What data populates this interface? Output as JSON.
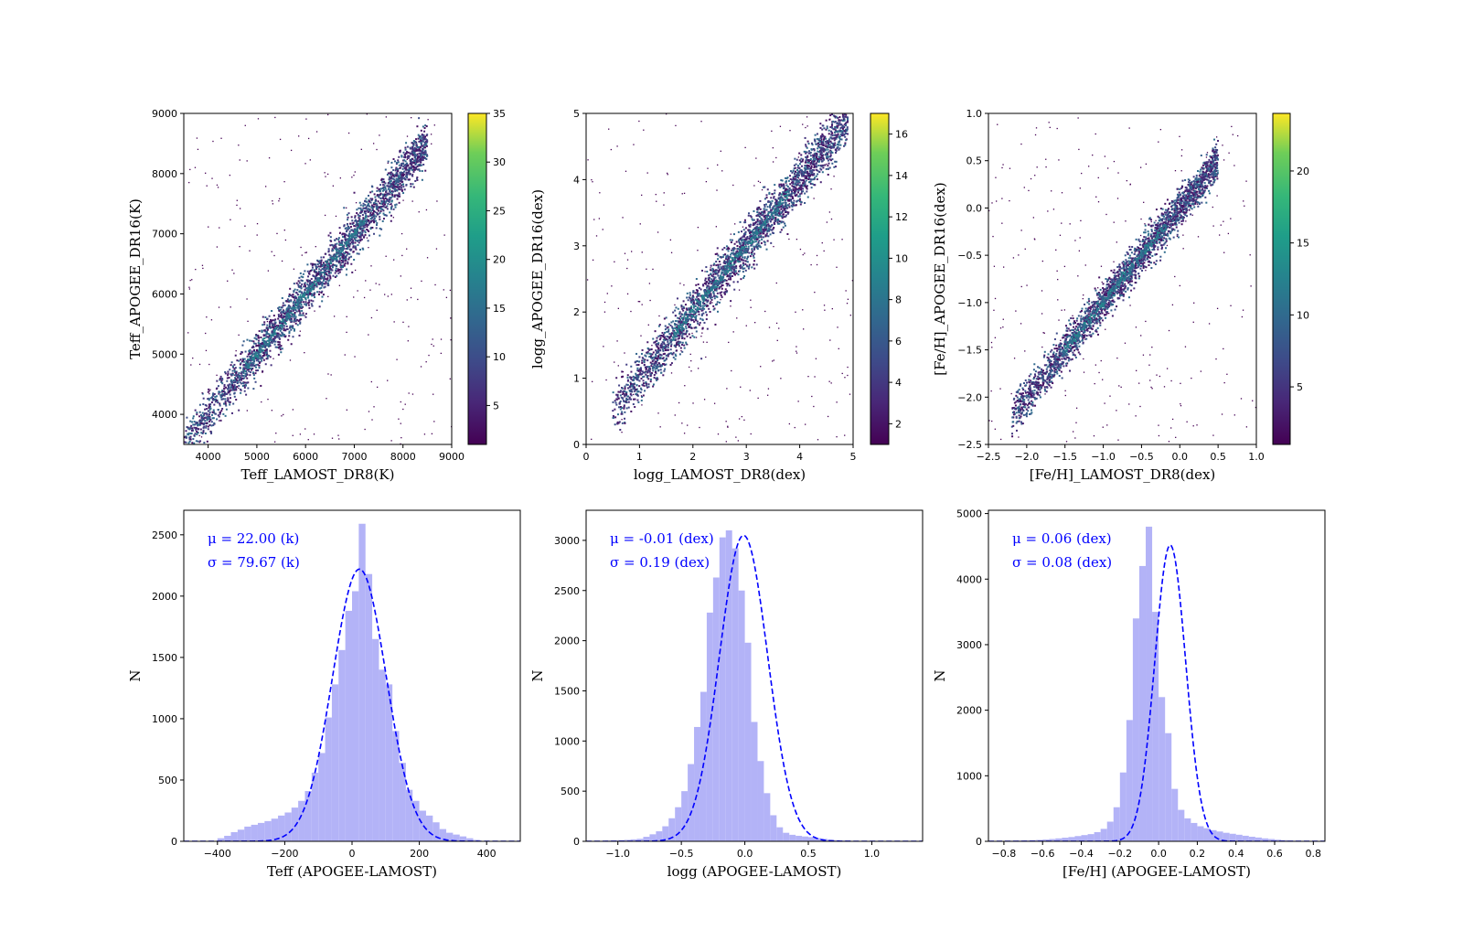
{
  "chart_data": [
    {
      "type": "scatter",
      "subtype": "density-scatter",
      "xlabel": "Teff_LAMOST_DR8(K)",
      "ylabel": "Teff_APOGEE_DR16(K)",
      "xlim": [
        3500,
        9000
      ],
      "ylim": [
        3500,
        9000
      ],
      "xticks": [
        4000,
        5000,
        6000,
        7000,
        8000,
        9000
      ],
      "yticks": [
        4000,
        5000,
        6000,
        7000,
        8000,
        9000
      ],
      "colorbar": {
        "range": [
          1,
          35
        ],
        "ticks": [
          5,
          10,
          15,
          20,
          25,
          30,
          35
        ],
        "colormap": "viridis"
      },
      "trend": {
        "x0": 3500,
        "x1": 8500,
        "slope": 1.0,
        "intercept": 0,
        "scatter": 180
      }
    },
    {
      "type": "scatter",
      "subtype": "density-scatter",
      "xlabel": "logg_LAMOST_DR8(dex)",
      "ylabel": "logg_APOGEE_DR16(dex)",
      "xlim": [
        0,
        5
      ],
      "ylim": [
        0,
        5
      ],
      "xticks": [
        0,
        1,
        2,
        3,
        4,
        5
      ],
      "yticks": [
        0,
        1,
        2,
        3,
        4,
        5
      ],
      "colorbar": {
        "range": [
          1,
          17
        ],
        "ticks": [
          2,
          4,
          6,
          8,
          10,
          12,
          14,
          16
        ],
        "colormap": "viridis"
      },
      "trend": {
        "x0": 0.5,
        "x1": 4.9,
        "slope": 1.0,
        "intercept": 0,
        "scatter": 0.18
      }
    },
    {
      "type": "scatter",
      "subtype": "density-scatter",
      "xlabel": "[Fe/H]_LAMOST_DR8(dex)",
      "ylabel": "[Fe/H]_APOGEE_DR16(dex)",
      "xlim": [
        -2.5,
        1.0
      ],
      "ylim": [
        -2.5,
        1.0
      ],
      "xticks": [
        -2.5,
        -2.0,
        -1.5,
        -1.0,
        -0.5,
        0.0,
        0.5,
        1.0
      ],
      "yticks": [
        -2.5,
        -2.0,
        -1.5,
        -1.0,
        -0.5,
        0.0,
        0.5,
        1.0
      ],
      "colorbar": {
        "range": [
          1,
          24
        ],
        "ticks": [
          5,
          10,
          15,
          20
        ],
        "colormap": "viridis"
      },
      "trend": {
        "x0": -2.2,
        "x1": 0.5,
        "slope": 1.0,
        "intercept": 0,
        "scatter": 0.1
      }
    },
    {
      "type": "bar",
      "subtype": "histogram",
      "xlabel": "Teff (APOGEE-LAMOST)",
      "ylabel": "N",
      "xlim": [
        -500,
        500
      ],
      "ylim": [
        0,
        2700
      ],
      "xticks": [
        -400,
        -200,
        0,
        200,
        400
      ],
      "yticks": [
        0,
        500,
        1000,
        1500,
        2000,
        2500
      ],
      "bin_edges": [
        -400,
        380
      ],
      "values": [
        25,
        45,
        75,
        95,
        120,
        135,
        150,
        165,
        185,
        210,
        235,
        275,
        330,
        410,
        560,
        720,
        1010,
        1280,
        1560,
        1880,
        2040,
        2590,
        2180,
        1650,
        1400,
        1280,
        900,
        640,
        420,
        330,
        250,
        210,
        155,
        100,
        70,
        55,
        40,
        25,
        12
      ],
      "fit": {
        "mu": 22.0,
        "sigma": 79.67,
        "amp": 2220
      },
      "annotations": [
        "μ = 22.00 (k)",
        "σ = 79.67 (k)"
      ]
    },
    {
      "type": "bar",
      "subtype": "histogram",
      "xlabel": "logg (APOGEE-LAMOST)",
      "ylabel": "N",
      "xlim": [
        -1.25,
        1.4
      ],
      "ylim": [
        0,
        3300
      ],
      "xticks": [
        -1.0,
        -0.5,
        0.0,
        0.5,
        1.0
      ],
      "yticks": [
        0,
        500,
        1000,
        1500,
        2000,
        2500,
        3000
      ],
      "bin_edges": [
        -1.2,
        1.2
      ],
      "values": [
        5,
        5,
        8,
        10,
        12,
        15,
        20,
        25,
        45,
        70,
        100,
        150,
        230,
        340,
        500,
        770,
        1140,
        1490,
        2280,
        2630,
        3030,
        3100,
        2920,
        2500,
        1980,
        1190,
        800,
        480,
        260,
        140,
        85,
        65,
        55,
        48,
        42,
        32,
        25,
        18,
        12,
        8,
        5,
        3,
        3,
        2,
        2,
        1,
        1,
        1
      ],
      "fit": {
        "mu": -0.01,
        "sigma": 0.19,
        "amp": 3050
      },
      "annotations": [
        "μ = -0.01 (dex)",
        "σ = 0.19 (dex)"
      ]
    },
    {
      "type": "bar",
      "subtype": "histogram",
      "xlabel": "[Fe/H] (APOGEE-LAMOST)",
      "ylabel": "N",
      "xlim": [
        -0.88,
        0.86
      ],
      "ylim": [
        0,
        5050
      ],
      "xticks": [
        -0.8,
        -0.6,
        -0.4,
        -0.2,
        0.0,
        0.2,
        0.4,
        0.6,
        0.8
      ],
      "yticks": [
        0,
        1000,
        2000,
        3000,
        4000,
        5000
      ],
      "bin_edges": [
        -0.8,
        0.8
      ],
      "values": [
        8,
        10,
        12,
        15,
        18,
        22,
        28,
        35,
        45,
        55,
        65,
        80,
        95,
        110,
        140,
        190,
        300,
        520,
        1050,
        1850,
        3400,
        4200,
        4800,
        3500,
        2200,
        1650,
        800,
        480,
        350,
        280,
        230,
        200,
        170,
        150,
        130,
        115,
        100,
        85,
        70,
        58,
        45,
        35,
        25,
        18,
        12,
        10,
        8,
        6
      ],
      "fit": {
        "mu": 0.06,
        "sigma": 0.08,
        "amp": 4520
      },
      "annotations": [
        "μ = 0.06 (dex)",
        "σ = 0.08 (dex)"
      ]
    }
  ]
}
